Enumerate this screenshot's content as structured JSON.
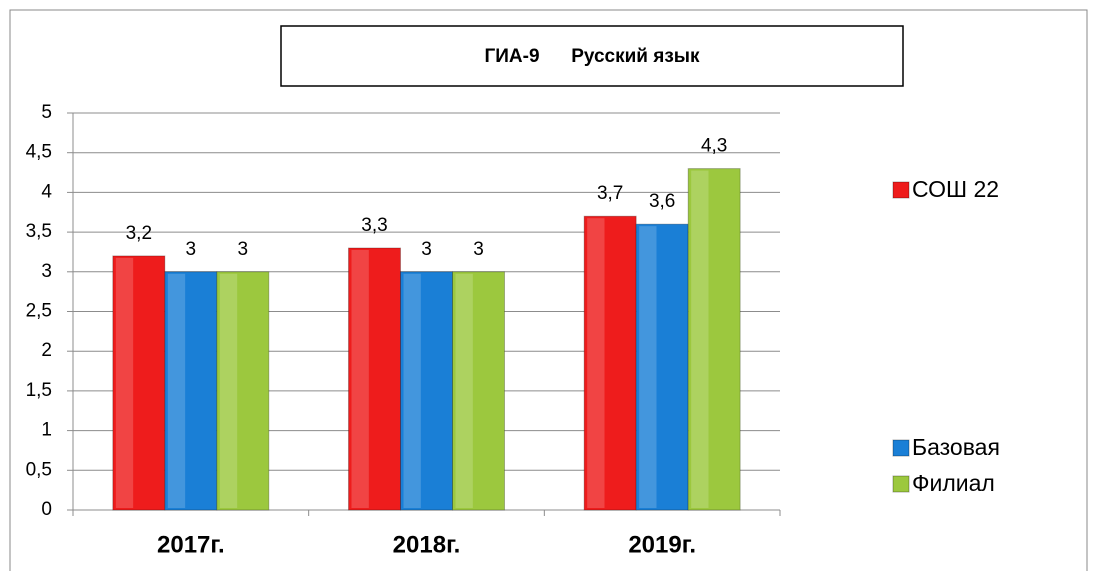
{
  "chart_data": {
    "type": "bar",
    "title": "ГИА-9      Русский язык",
    "categories": [
      "2017г.",
      "2018г.",
      "2019г."
    ],
    "series": [
      {
        "name": "СОШ 22",
        "color": "#ee1c1c",
        "values": [
          3.2,
          3.3,
          3.7
        ],
        "value_labels": [
          "3,2",
          "3,3",
          "3,7"
        ]
      },
      {
        "name": "Базовая",
        "color": "#1a7fd6",
        "values": [
          3,
          3,
          3.6
        ],
        "value_labels": [
          "3",
          "3",
          "3,6"
        ]
      },
      {
        "name": "Филиал",
        "color": "#9cc83e",
        "values": [
          3,
          3,
          4.3
        ],
        "value_labels": [
          "3",
          "3",
          "4,3"
        ]
      }
    ],
    "ylim": [
      0,
      5
    ],
    "yticks": [
      0,
      {
        "value": 0.5,
        "label": "0,5"
      },
      1,
      {
        "value": 1.5,
        "label": "1,5"
      },
      2,
      {
        "value": 2.5,
        "label": "2,5"
      },
      3,
      {
        "value": 3.5,
        "label": "3,5"
      },
      4,
      {
        "value": 4.5,
        "label": "4,5"
      },
      5
    ],
    "grid": true,
    "legend": "right"
  }
}
